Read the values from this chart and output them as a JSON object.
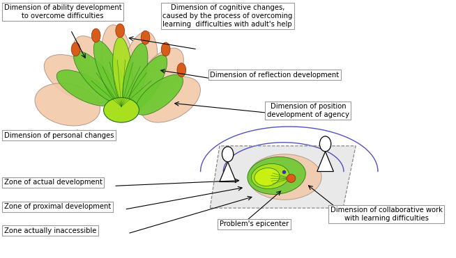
{
  "bg_color": "#ffffff",
  "labels": {
    "ability": "Dimension of ability development\nto overcome difficulties",
    "cognitive": "Dimension of cognitive changes,\ncaused by the process of overcoming\nlearning  difficulties with adult's help",
    "reflection": "Dimension of reflection development",
    "agency": "Dimension of position\ndevelopment of agency",
    "personal": "Dimension of personal changes",
    "actual": "Zone of actual development",
    "proximal": "Zone of proximal development",
    "inaccessible": "Zone actually inaccessible",
    "epicenter": "Problem's epicenter",
    "collaborative": "Dimension of collaborative work\nwith learning difficulties"
  },
  "petal_color_outer": "#f2c9a8",
  "petal_color_inner": "#6cc830",
  "petal_color_bright": "#a8e020",
  "petal_color_dark": "#2d8a1e",
  "petal_tip_color": "#d95d1a",
  "blue_curve_color": "#3333bb",
  "arrow_color": "#000000",
  "box_edge_color": "#999999",
  "dashed_box_color": "#999999",
  "shadow_box_color": "#cccccc"
}
